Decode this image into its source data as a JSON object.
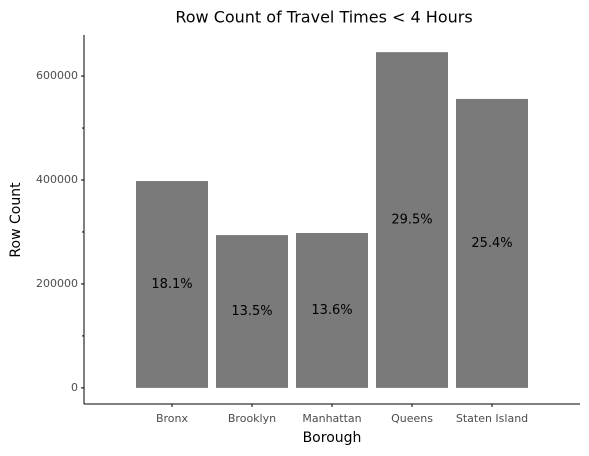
{
  "chart_data": {
    "type": "bar",
    "title": "Row Count of Travel Times < 4 Hours",
    "x_label": "Borough",
    "y_label": "Row Count",
    "categories": [
      "Bronx",
      "Brooklyn",
      "Manhattan",
      "Queens",
      "Staten Island"
    ],
    "values": [
      398000,
      294000,
      298000,
      646000,
      556000
    ],
    "annotations": [
      "18.1%",
      "13.5%",
      "13.6%",
      "29.5%",
      "25.4%"
    ],
    "color": "#7a7a7a",
    "ylim": [
      -31000,
      679000
    ],
    "yticks": [
      0,
      200000,
      400000,
      600000
    ],
    "yticks_minor": [
      100000,
      300000,
      500000
    ],
    "grid": false
  }
}
